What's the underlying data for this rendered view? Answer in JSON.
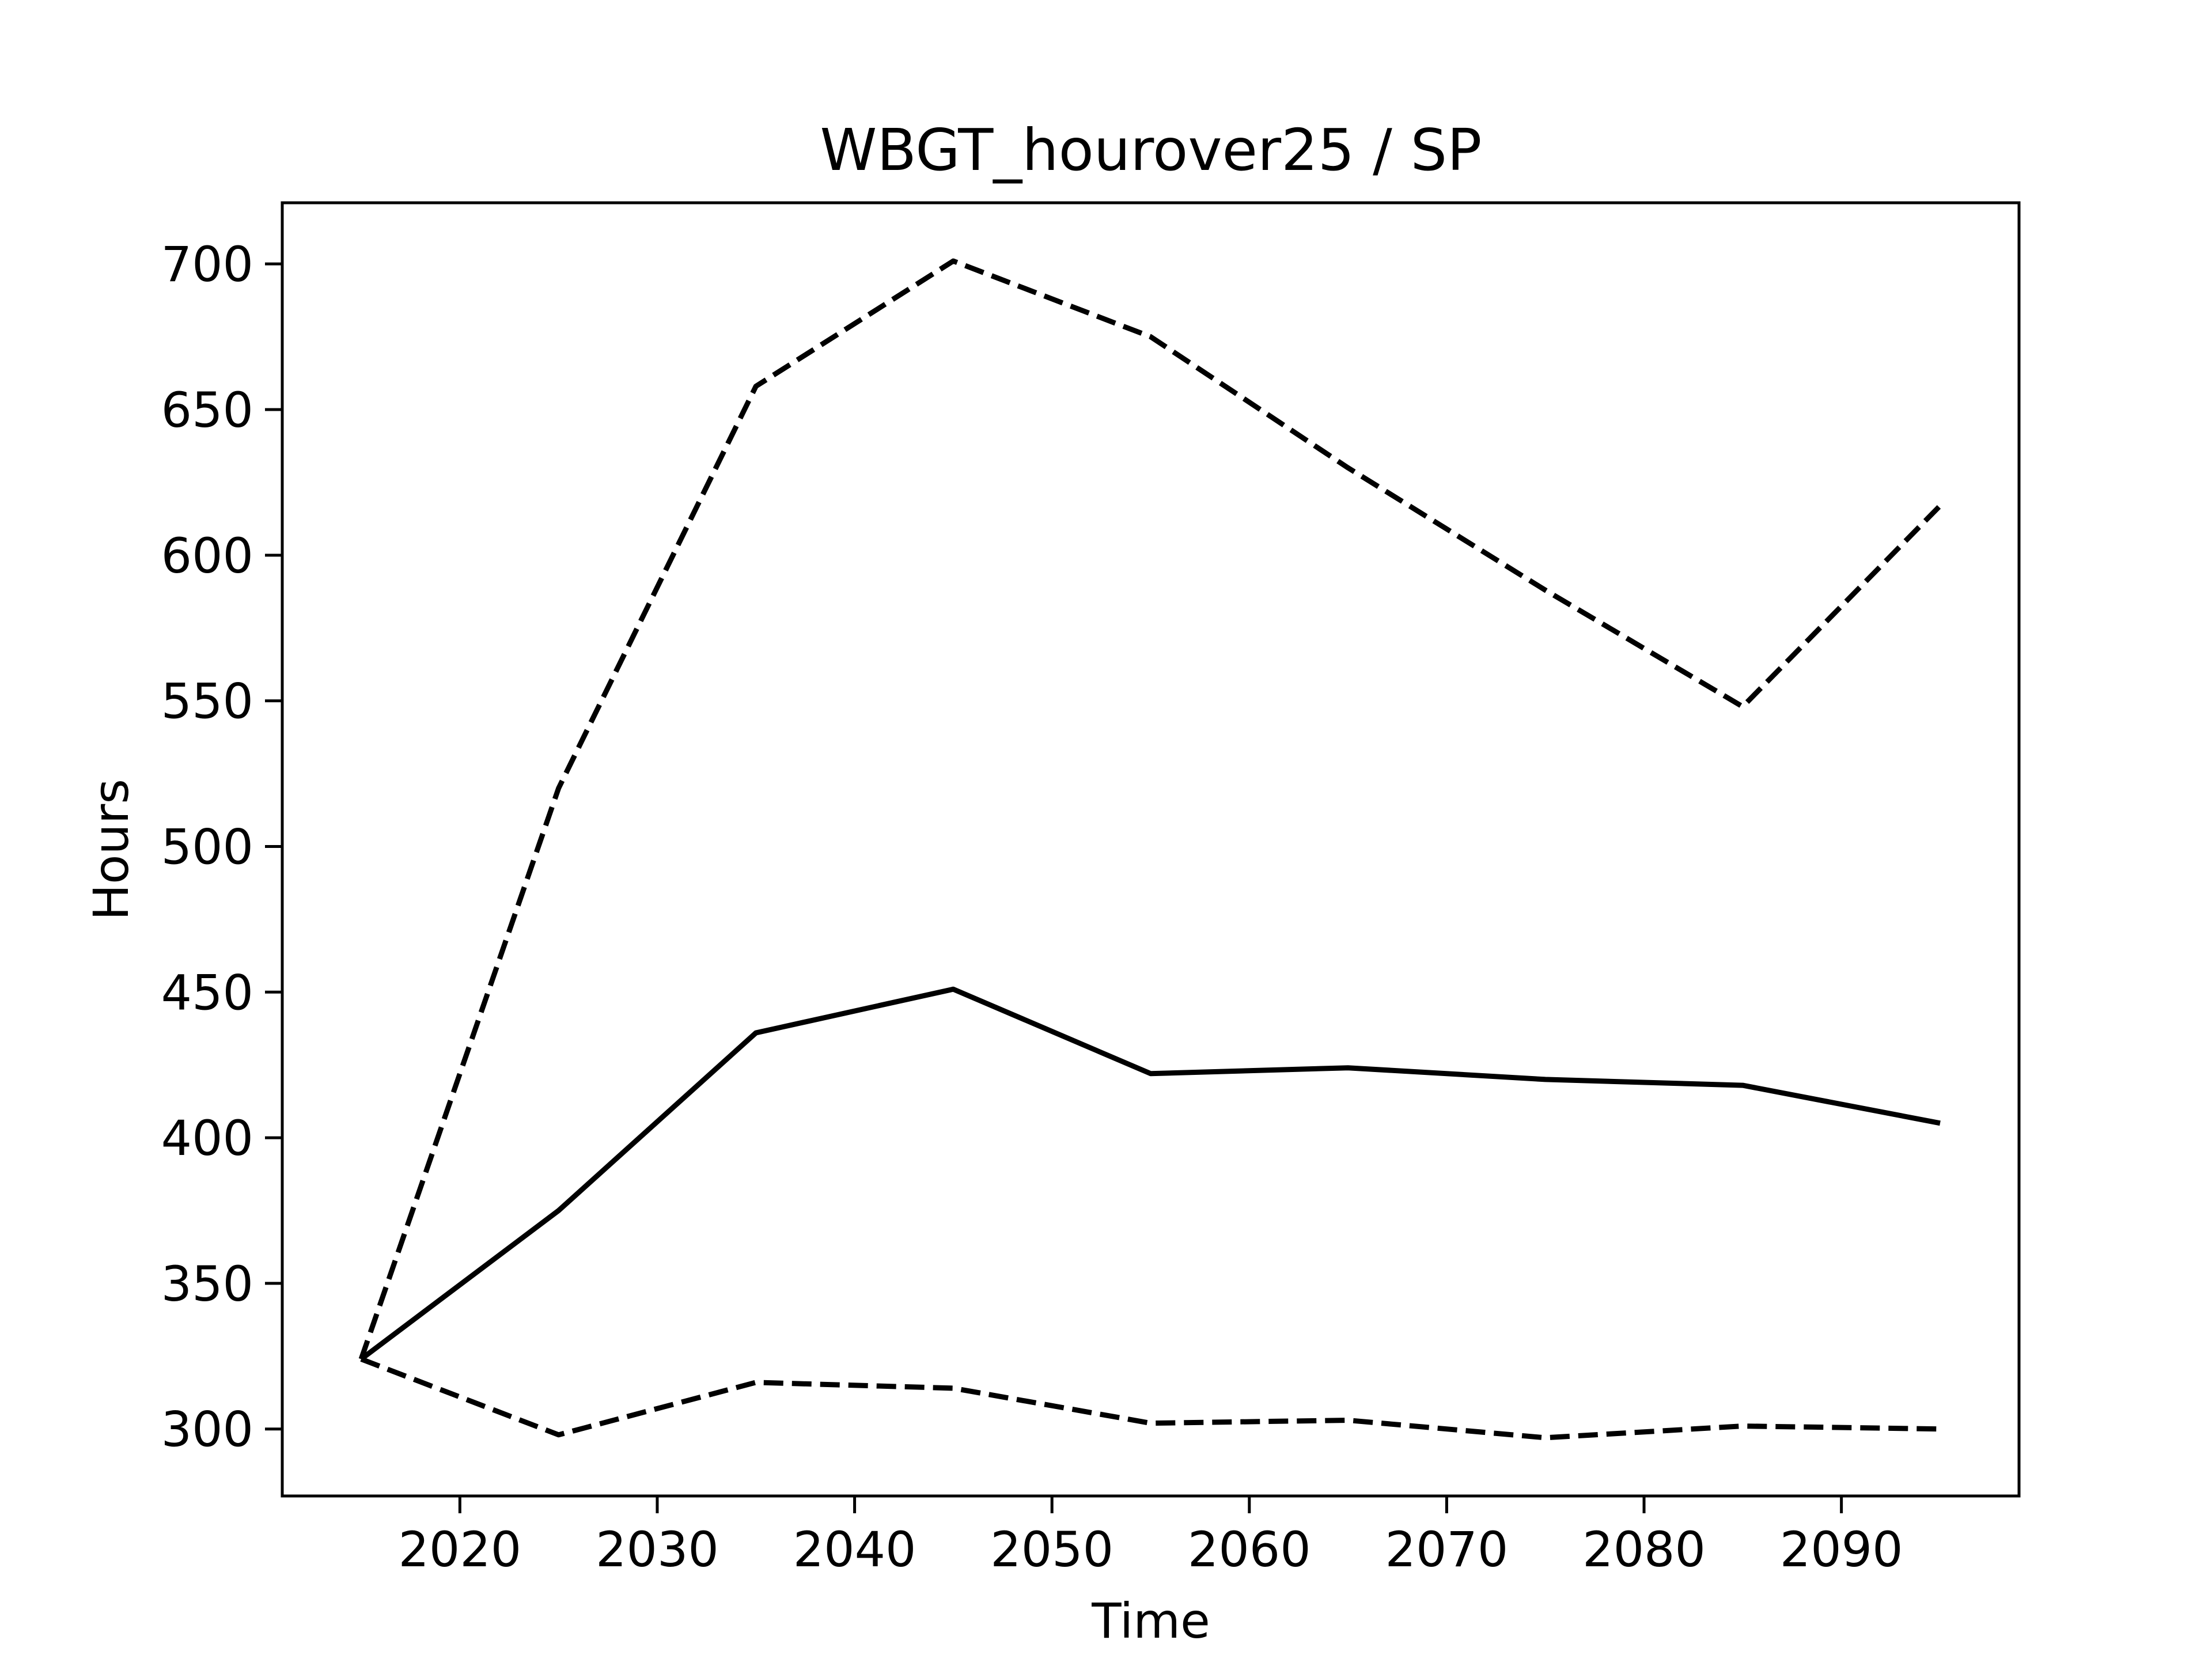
{
  "chart_data": {
    "type": "line",
    "title": "WBGT_hourover25 / SP",
    "xlabel": "Time",
    "ylabel": "Hours",
    "xlim": [
      2011,
      2099
    ],
    "ylim": [
      277,
      721
    ],
    "xticks": [
      2020,
      2030,
      2040,
      2050,
      2060,
      2070,
      2080,
      2090
    ],
    "yticks": [
      300,
      350,
      400,
      450,
      500,
      550,
      600,
      650,
      700
    ],
    "grid": false,
    "legend": "none",
    "x": [
      2015,
      2025,
      2035,
      2045,
      2055,
      2065,
      2075,
      2085,
      2095
    ],
    "series": [
      {
        "style": "solid",
        "color": "#000000",
        "values": [
          324,
          375,
          436,
          451,
          422,
          424,
          420,
          418,
          405
        ]
      },
      {
        "style": "dashed",
        "color": "#000000",
        "values": [
          324,
          520,
          658,
          701,
          675,
          630,
          588,
          548,
          617
        ]
      },
      {
        "style": "dashed",
        "color": "#000000",
        "values": [
          324,
          298,
          316,
          314,
          302,
          303,
          297,
          301,
          300
        ]
      }
    ]
  }
}
